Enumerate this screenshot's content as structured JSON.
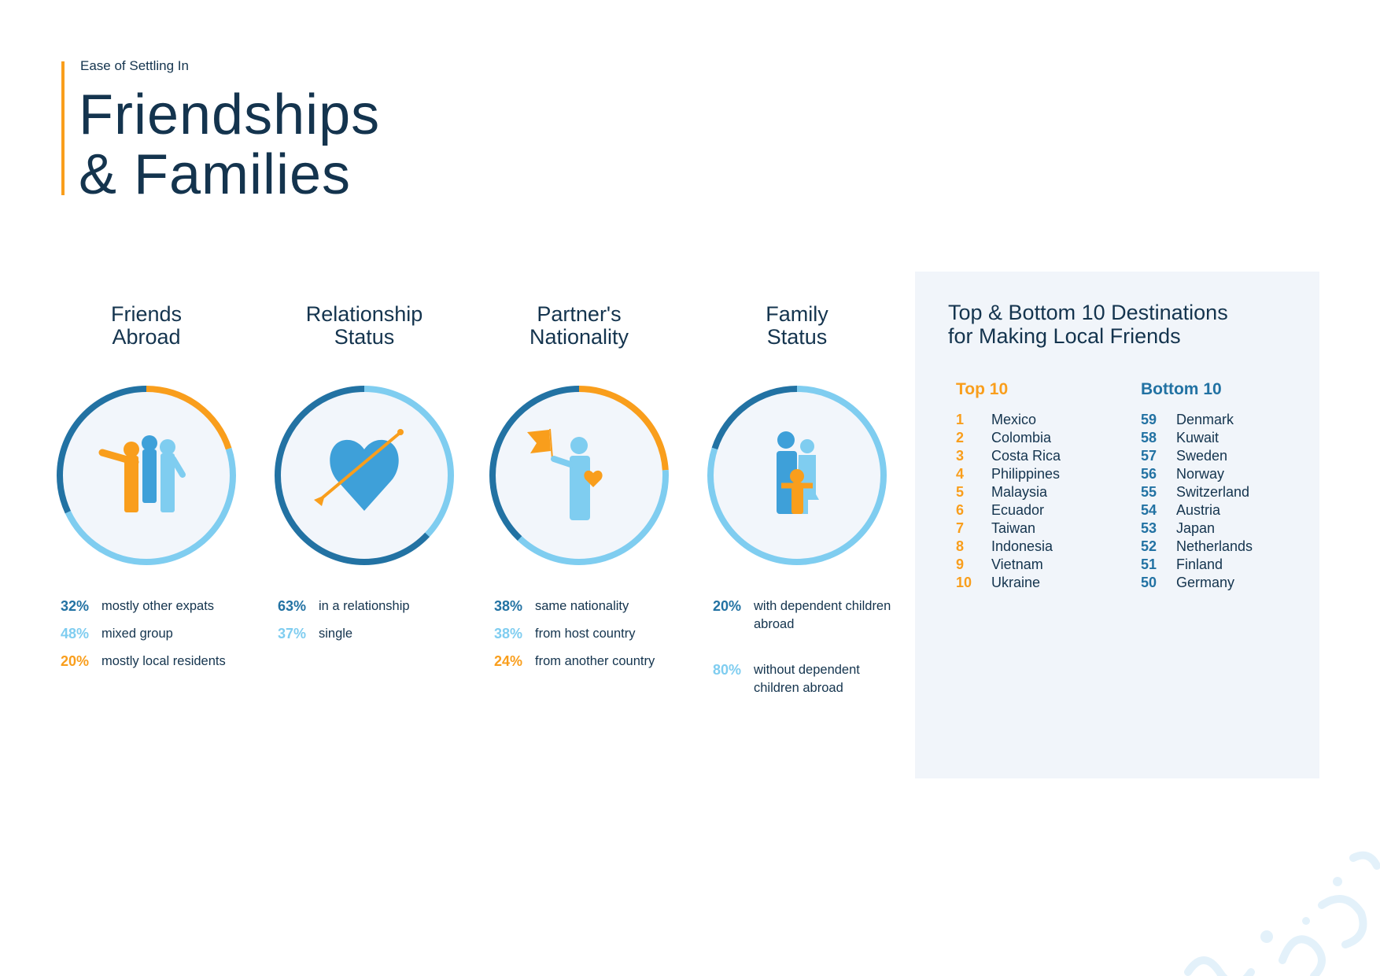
{
  "header": {
    "kicker": "Ease of Settling In",
    "title_line1": "Friendships",
    "title_line2": "& Families"
  },
  "colors": {
    "dark": "#2272a3",
    "mid": "#3ea0d9",
    "light": "#7fcdf0",
    "orange": "#f99e1c",
    "text": "#14344e",
    "panel": "#f1f5fa"
  },
  "sections": [
    {
      "title1": "Friends",
      "title2": "Abroad",
      "icon": "friends-group-icon",
      "segments": [
        {
          "value": 20,
          "color": "orange"
        },
        {
          "value": 48,
          "color": "light"
        },
        {
          "value": 32,
          "color": "dark"
        }
      ],
      "legend": [
        {
          "pct": "32%",
          "label": "mostly other expats",
          "color": "dark"
        },
        {
          "pct": "48%",
          "label": "mixed group",
          "color": "light"
        },
        {
          "pct": "20%",
          "label": "mostly local residents",
          "color": "orange"
        }
      ]
    },
    {
      "title1": "Relationship",
      "title2": "Status",
      "icon": "heart-arrow-icon",
      "segments": [
        {
          "value": 37,
          "color": "light"
        },
        {
          "value": 63,
          "color": "dark"
        }
      ],
      "legend": [
        {
          "pct": "63%",
          "label": "in a relationship",
          "color": "dark"
        },
        {
          "pct": "37%",
          "label": "single",
          "color": "light"
        }
      ]
    },
    {
      "title1": "Partner's",
      "title2": "Nationality",
      "icon": "person-flag-icon",
      "segments": [
        {
          "value": 24,
          "color": "orange"
        },
        {
          "value": 38,
          "color": "light"
        },
        {
          "value": 38,
          "color": "dark"
        }
      ],
      "legend": [
        {
          "pct": "38%",
          "label": "same nationality",
          "color": "dark"
        },
        {
          "pct": "38%",
          "label": "from host country",
          "color": "light"
        },
        {
          "pct": "24%",
          "label": "from another country",
          "color": "orange"
        }
      ]
    },
    {
      "title1": "Family",
      "title2": "Status",
      "icon": "family-icon",
      "segments": [
        {
          "value": 80,
          "color": "light"
        },
        {
          "value": 20,
          "color": "dark"
        }
      ],
      "legend": [
        {
          "pct": "20%",
          "label": "with dependent children abroad",
          "color": "dark"
        },
        {
          "pct": "80%",
          "label": "without dependent children abroad",
          "color": "light"
        }
      ]
    }
  ],
  "destinations": {
    "title_line1": "Top & Bottom 10 Destinations",
    "title_line2": "for Making Local Friends",
    "top_label": "Top 10",
    "bottom_label": "Bottom 10",
    "top": [
      {
        "rank": "1",
        "name": "Mexico"
      },
      {
        "rank": "2",
        "name": "Colombia"
      },
      {
        "rank": "3",
        "name": "Costa Rica"
      },
      {
        "rank": "4",
        "name": "Philippines"
      },
      {
        "rank": "5",
        "name": "Malaysia"
      },
      {
        "rank": "6",
        "name": "Ecuador"
      },
      {
        "rank": "7",
        "name": "Taiwan"
      },
      {
        "rank": "8",
        "name": "Indonesia"
      },
      {
        "rank": "9",
        "name": "Vietnam"
      },
      {
        "rank": "10",
        "name": "Ukraine"
      }
    ],
    "bottom": [
      {
        "rank": "59",
        "name": "Denmark"
      },
      {
        "rank": "58",
        "name": "Kuwait"
      },
      {
        "rank": "57",
        "name": "Sweden"
      },
      {
        "rank": "56",
        "name": "Norway"
      },
      {
        "rank": "55",
        "name": "Switzerland"
      },
      {
        "rank": "54",
        "name": "Austria"
      },
      {
        "rank": "53",
        "name": "Japan"
      },
      {
        "rank": "52",
        "name": "Netherlands"
      },
      {
        "rank": "51",
        "name": "Finland"
      },
      {
        "rank": "50",
        "name": "Germany"
      }
    ]
  }
}
